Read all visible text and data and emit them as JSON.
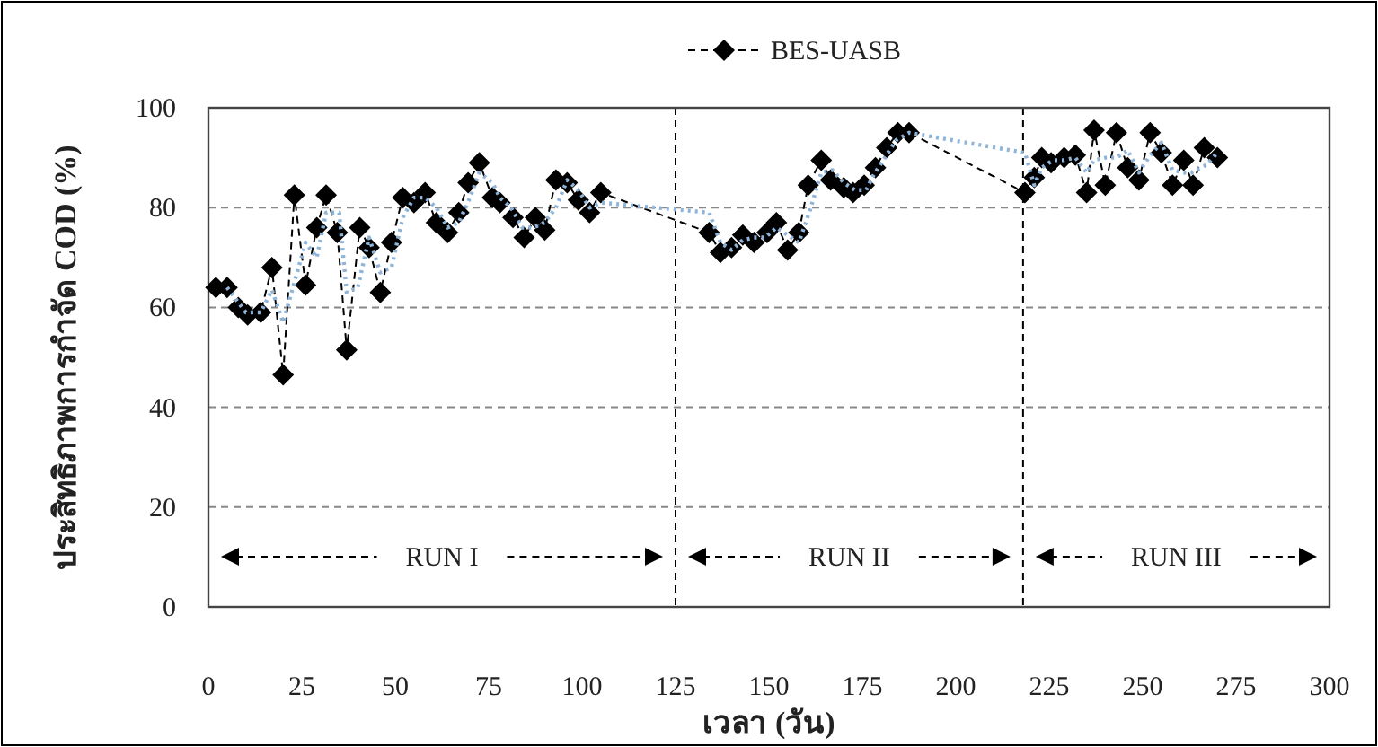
{
  "chart_data": {
    "type": "line",
    "xlabel": "เวลา (วัน)",
    "ylabel": "ประสิทธิภาพการกำจัด COD (%)",
    "xlim": [
      0,
      300
    ],
    "xticks": [
      0,
      25,
      50,
      75,
      100,
      125,
      150,
      175,
      200,
      225,
      250,
      275,
      300
    ],
    "ylim": [
      0,
      100
    ],
    "yticks": [
      0,
      20,
      40,
      60,
      80,
      100
    ],
    "grid": "y",
    "legend": "top",
    "series": [
      {
        "name": "BES-UASB",
        "color": "#000000",
        "line_style": "dashed",
        "marker": "diamond",
        "x": [
          2,
          5,
          8,
          10.5,
          14,
          17,
          20,
          23,
          26,
          29,
          31.5,
          34.5,
          37,
          40.5,
          43,
          46,
          49,
          52,
          55,
          58,
          61,
          64,
          67,
          69.5,
          72.5,
          76,
          78,
          81.5,
          84.5,
          87.5,
          90,
          93,
          96,
          99,
          102,
          105,
          134,
          137,
          140,
          143,
          146,
          149.5,
          152,
          155,
          158,
          160.5,
          164,
          166.5,
          170,
          172.5,
          175.5,
          178.5,
          181.5,
          184.5,
          187.5,
          218.5,
          221,
          223,
          225.5,
          229,
          232,
          235,
          237,
          240,
          243,
          246,
          249,
          252,
          255,
          258,
          261,
          263.5,
          266.5,
          270
        ],
        "values": [
          64,
          64,
          60,
          58.5,
          59,
          68,
          46.5,
          82.5,
          64.5,
          76,
          82.5,
          75,
          51.5,
          76,
          72,
          63,
          73,
          82,
          81,
          83,
          77,
          75,
          79,
          85,
          89,
          82,
          81,
          78,
          74,
          78,
          75.5,
          85.5,
          85,
          81.5,
          79,
          83,
          75,
          71,
          72,
          74.5,
          73,
          75,
          77,
          71.5,
          75,
          84.5,
          89.5,
          85.5,
          84,
          83,
          84.5,
          88,
          92,
          95,
          95,
          83,
          86,
          90,
          89,
          90,
          90.5,
          83,
          95.5,
          84.5,
          95,
          88,
          85.5,
          95,
          91,
          84.5,
          89.5,
          84.5,
          92,
          90
        ]
      },
      {
        "type": "line",
        "color": "#8fb4d9",
        "line_style": "dotted",
        "marker": "none",
        "x": [
          5,
          10,
          14,
          17,
          20,
          23,
          26,
          29,
          31.5,
          35,
          37,
          40,
          43,
          46,
          49,
          52,
          55,
          58,
          61,
          64,
          67,
          70,
          72.5,
          76,
          78,
          81,
          84,
          87,
          90,
          93,
          96,
          99,
          102,
          105,
          134,
          137,
          140,
          143,
          146,
          149,
          152,
          155,
          158,
          161,
          164,
          167,
          170,
          173,
          176,
          178,
          181,
          184,
          187.5,
          218.5,
          221,
          223,
          226,
          229,
          232,
          235,
          237,
          240,
          243,
          246,
          249,
          252,
          255,
          258,
          261,
          263,
          267,
          270
        ],
        "values": [
          64,
          59,
          59,
          63.5,
          57,
          65,
          73,
          70,
          79,
          79,
          63,
          64,
          74,
          67,
          68,
          78,
          82,
          82,
          80,
          76,
          77,
          82,
          87,
          85,
          82,
          80,
          76,
          76,
          77,
          80,
          85.5,
          83.5,
          80,
          81,
          79,
          73,
          71.5,
          73.5,
          74,
          74,
          76,
          74.5,
          73,
          79.5,
          87,
          87.5,
          85,
          83.5,
          83.5,
          86.5,
          90,
          93.5,
          95,
          91,
          84.5,
          88,
          89.5,
          89.5,
          90,
          87,
          89.5,
          90,
          90,
          91.5,
          87,
          90.5,
          93,
          87.5,
          87,
          87,
          88.5,
          91
        ]
      }
    ],
    "ref_lines": [
      {
        "axis": "x",
        "value": 125
      },
      {
        "axis": "x",
        "value": 218
      }
    ],
    "annotations": [
      "RUN I",
      "RUN II",
      "RUN III"
    ]
  }
}
